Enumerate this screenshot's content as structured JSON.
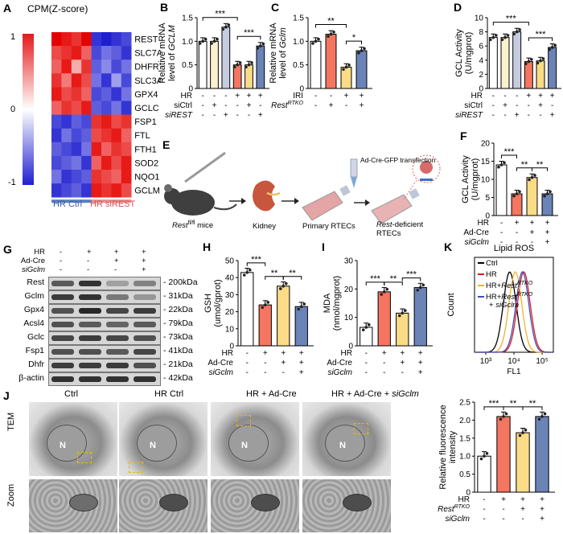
{
  "panel_labels": [
    "A",
    "B",
    "C",
    "D",
    "E",
    "F",
    "G",
    "H",
    "I",
    "J",
    "K"
  ],
  "heatmap": {
    "scale_title": "CPM(Z-score)",
    "scale_ticks": [
      "1",
      "0",
      "-1"
    ],
    "genes": [
      "REST",
      "SLC7A11",
      "DHFR",
      "SLC3A2",
      "GPX4",
      "GCLC",
      "FSP1",
      "FTL",
      "FTH1",
      "SOD2",
      "NQO1",
      "GCLM"
    ],
    "group_labels": [
      "HR Ctrl",
      "HR siREST"
    ],
    "values": [
      [
        1.0,
        0.9,
        0.8,
        1.0,
        -0.9,
        -1.0,
        -0.9,
        -0.8
      ],
      [
        0.7,
        0.8,
        0.9,
        0.6,
        -0.8,
        -0.6,
        -0.7,
        -0.9
      ],
      [
        0.6,
        0.9,
        0.3,
        0.8,
        -0.7,
        -0.5,
        -0.8,
        -0.6
      ],
      [
        0.8,
        0.5,
        0.9,
        0.7,
        -0.6,
        -0.9,
        -0.4,
        -0.8
      ],
      [
        0.9,
        0.7,
        0.8,
        0.6,
        -0.8,
        -0.7,
        -0.9,
        -0.6
      ],
      [
        0.6,
        0.8,
        0.7,
        0.9,
        -0.7,
        -0.8,
        -0.6,
        -0.9
      ],
      [
        -0.8,
        -0.9,
        -0.7,
        -0.8,
        0.8,
        0.9,
        0.7,
        0.8
      ],
      [
        -0.9,
        -0.6,
        -0.8,
        -0.7,
        0.7,
        0.8,
        0.9,
        0.6
      ],
      [
        -0.7,
        -0.8,
        -0.9,
        -0.6,
        0.9,
        0.6,
        0.8,
        0.7
      ],
      [
        -0.8,
        -0.7,
        -0.6,
        -0.9,
        0.6,
        0.9,
        0.7,
        0.9
      ],
      [
        -0.6,
        -0.9,
        -0.8,
        -0.7,
        0.8,
        0.7,
        0.6,
        0.9
      ],
      [
        -0.9,
        -0.8,
        -0.7,
        -0.9,
        0.9,
        0.8,
        0.9,
        0.7
      ]
    ]
  },
  "chart_data": [
    {
      "panel": "B",
      "type": "bar",
      "ylabel": "Relative mRNA level of GCLM",
      "ylim": [
        0,
        1.5
      ],
      "yticks": [
        "0",
        "0.5",
        "1.0",
        "1.5"
      ],
      "values": [
        1.0,
        1.0,
        1.3,
        0.5,
        0.5,
        0.9
      ],
      "row_labels": [
        "HR",
        "siCtrl",
        "siREST"
      ],
      "conditions": [
        [
          "-",
          "-",
          "-",
          "+",
          "+",
          "+"
        ],
        [
          "-",
          "+",
          "-",
          "-",
          "+",
          "-"
        ],
        [
          "-",
          "-",
          "+",
          "-",
          "-",
          "+"
        ]
      ],
      "significance": [
        {
          "a": 0,
          "b": 3,
          "label": "***"
        },
        {
          "a": 3,
          "b": 5,
          "label": "***"
        }
      ]
    },
    {
      "panel": "C",
      "type": "bar",
      "ylabel": "Relative mRNA level of Gclm",
      "ylim": [
        0,
        1.5
      ],
      "yticks": [
        "0",
        "0.5",
        "1.0",
        "1.5"
      ],
      "values": [
        1.0,
        1.15,
        0.45,
        0.8
      ],
      "row_labels": [
        "IRI",
        "RestRTKO"
      ],
      "conditions": [
        [
          "-",
          "-",
          "+",
          "+"
        ],
        [
          "-",
          "+",
          "-",
          "+"
        ]
      ],
      "significance": [
        {
          "a": 0,
          "b": 2,
          "label": "**"
        },
        {
          "a": 2,
          "b": 3,
          "label": "*"
        }
      ]
    },
    {
      "panel": "D",
      "type": "bar",
      "ylabel": "GCL Activity (U/mgprot)",
      "ylim": [
        0,
        10
      ],
      "yticks": [
        "0",
        "2",
        "4",
        "6",
        "8",
        "10"
      ],
      "values": [
        7.2,
        7.2,
        8.0,
        3.8,
        3.9,
        5.8
      ],
      "row_labels": [
        "HR",
        "siCtrl",
        "siREST"
      ],
      "conditions": [
        [
          "-",
          "-",
          "-",
          "+",
          "+",
          "+"
        ],
        [
          "-",
          "+",
          "-",
          "-",
          "+",
          "-"
        ],
        [
          "-",
          "-",
          "+",
          "-",
          "-",
          "+"
        ]
      ],
      "significance": [
        {
          "a": 0,
          "b": 3,
          "label": "***"
        },
        {
          "a": 3,
          "b": 5,
          "label": "***"
        }
      ]
    },
    {
      "panel": "F",
      "type": "bar",
      "ylabel": "GCL Activity (U/mgprot)",
      "ylim": [
        0,
        20
      ],
      "yticks": [
        "0",
        "5",
        "10",
        "15",
        "20"
      ],
      "values": [
        14.0,
        6.0,
        10.5,
        6.0
      ],
      "row_labels": [
        "HR",
        "Ad-Cre",
        "siGclm"
      ],
      "conditions": [
        [
          "-",
          "+",
          "+",
          "+"
        ],
        [
          "-",
          "-",
          "+",
          "+"
        ],
        [
          "-",
          "-",
          "-",
          "+"
        ]
      ],
      "significance": [
        {
          "a": 0,
          "b": 1,
          "label": "***"
        },
        {
          "a": 1,
          "b": 2,
          "label": "**"
        },
        {
          "a": 2,
          "b": 3,
          "label": "**"
        }
      ]
    },
    {
      "panel": "H",
      "type": "bar",
      "ylabel": "GSH (umol/gprot)",
      "ylim": [
        0,
        50
      ],
      "yticks": [
        "0",
        "10",
        "20",
        "30",
        "40",
        "50"
      ],
      "values": [
        43.0,
        24.0,
        35.0,
        23.0
      ],
      "row_labels": [
        "HR",
        "Ad-Cre",
        "siGclm"
      ],
      "conditions": [
        [
          "-",
          "+",
          "+",
          "+"
        ],
        [
          "-",
          "-",
          "+",
          "+"
        ],
        [
          "-",
          "-",
          "-",
          "+"
        ]
      ],
      "significance": [
        {
          "a": 0,
          "b": 1,
          "label": "***"
        },
        {
          "a": 1,
          "b": 2,
          "label": "**"
        },
        {
          "a": 2,
          "b": 3,
          "label": "**"
        }
      ]
    },
    {
      "panel": "I",
      "type": "bar",
      "ylabel": "MDA (nmol/mgprot)",
      "ylim": [
        0,
        30
      ],
      "yticks": [
        "0",
        "10",
        "20",
        "30"
      ],
      "values": [
        6.5,
        19.0,
        11.5,
        20.5
      ],
      "row_labels": [
        "HR",
        "Ad-Cre",
        "siGclm"
      ],
      "conditions": [
        [
          "-",
          "+",
          "+",
          "+"
        ],
        [
          "-",
          "-",
          "+",
          "+"
        ],
        [
          "-",
          "-",
          "-",
          "+"
        ]
      ],
      "significance": [
        {
          "a": 0,
          "b": 1,
          "label": "***"
        },
        {
          "a": 1,
          "b": 2,
          "label": "**"
        },
        {
          "a": 2,
          "b": 3,
          "label": "***"
        }
      ]
    },
    {
      "panel": "J",
      "type": "bar",
      "ylabel": "Relative fluorescence intensity",
      "ylim": [
        0,
        2.5
      ],
      "yticks": [
        "0",
        "0.5",
        "1.0",
        "1.5",
        "2.0",
        "2.5"
      ],
      "values": [
        1.0,
        2.1,
        1.65,
        2.1
      ],
      "row_labels": [
        "HR",
        "RestRTKO",
        "siGclm"
      ],
      "conditions": [
        [
          "-",
          "+",
          "+",
          "+"
        ],
        [
          "-",
          "-",
          "+",
          "+"
        ],
        [
          "-",
          "-",
          "-",
          "+"
        ]
      ],
      "significance": [
        {
          "a": 0,
          "b": 1,
          "label": "***"
        },
        {
          "a": 1,
          "b": 2,
          "label": "**"
        },
        {
          "a": 2,
          "b": 3,
          "label": "**"
        }
      ]
    },
    {
      "panel": "K",
      "type": "line",
      "title": "Lipid ROS",
      "xlabel": "FL1",
      "ylabel": "Count",
      "x_ticks": [
        "10³",
        "10⁴",
        "10⁵"
      ],
      "series": [
        {
          "name": "Ctrl",
          "color": "#000000",
          "peak": 3.85
        },
        {
          "name": "HR",
          "color": "#e41a1c",
          "peak": 4.35
        },
        {
          "name": "HR+RestRTKO",
          "color": "#f2b134",
          "peak": 4.05
        },
        {
          "name": "HR+RestRTKO + siGclm",
          "color": "#3a4fc4",
          "peak": 4.3
        }
      ]
    }
  ],
  "schematic": {
    "mouse_label": "Rest fl/fl mice",
    "kidney_label": "Kidney",
    "primary_label": "Primary RTECs",
    "transfection_label": "Ad-Cre-GFP transfection",
    "deficient_label": "Rest-deficient RTECs"
  },
  "western": {
    "header_rows": [
      {
        "label": "HR",
        "values": [
          "-",
          "+",
          "+",
          "+"
        ]
      },
      {
        "label": "Ad-Cre",
        "values": [
          "-",
          "-",
          "+",
          "+"
        ]
      },
      {
        "label": "siGclm",
        "values": [
          "-",
          "-",
          "-",
          "+"
        ]
      }
    ],
    "bands": [
      {
        "name": "Rest",
        "kda": "200kDa"
      },
      {
        "name": "Gclm",
        "kda": "31kDa"
      },
      {
        "name": "Gpx4",
        "kda": "22kDa"
      },
      {
        "name": "Acsl4",
        "kda": "79kDa"
      },
      {
        "name": "Gclc",
        "kda": "73kDa"
      },
      {
        "name": "Fsp1",
        "kda": "41kDa"
      },
      {
        "name": "Dhfr",
        "kda": "21kDa"
      },
      {
        "name": "β-actin",
        "kda": "42kDa"
      }
    ]
  },
  "tem": {
    "titles": [
      "Ctrl",
      "HR Ctrl",
      "HR + Ad-Cre",
      "HR + Ad-Cre + siGclm"
    ],
    "row_labels": [
      "TEM",
      "Zoom"
    ],
    "nucleus_label": "N"
  },
  "colors": {
    "ctrl": "#ffffff",
    "sictrl": "#fbf1cf",
    "sirest": "#c5cce0",
    "hr": "#f47560",
    "hrsictrl": "#fbdc86",
    "hrsirest": "#6b84b8",
    "heat_red": "#e41a1c",
    "heat_blue": "#1f1fd0",
    "heat_mid": "#ffffff"
  }
}
